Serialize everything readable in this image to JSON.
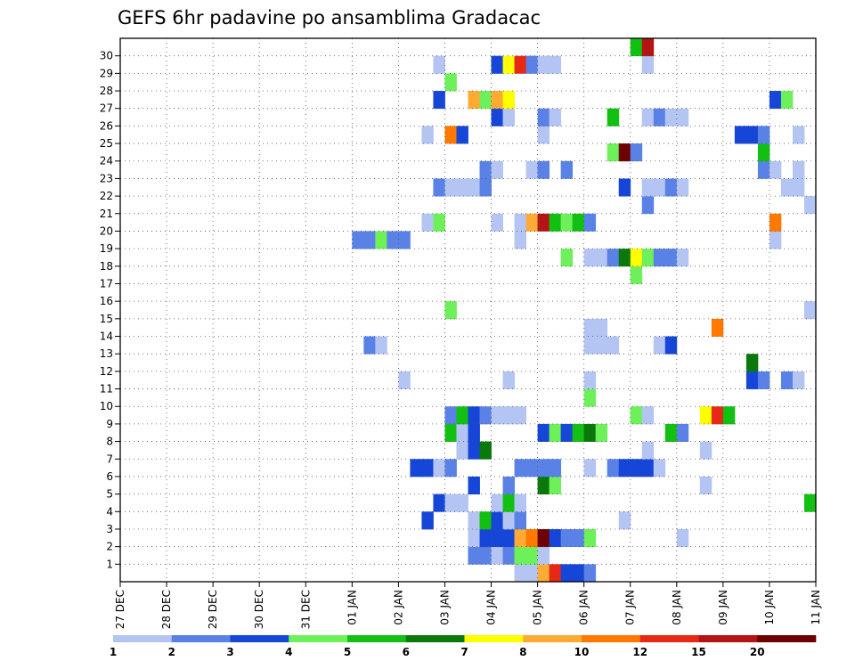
{
  "chart_data": {
    "type": "heatmap",
    "title": "GEFS 6hr padavine po ansamblima Gradacac",
    "xlabel": "",
    "ylabel": "",
    "x_tick_labels": [
      "27 DEC",
      "28 DEC",
      "29 DEC",
      "30 DEC",
      "31 DEC",
      "01 JAN",
      "02 JAN",
      "03 JAN",
      "04 JAN",
      "05 JAN",
      "06 JAN",
      "07 JAN",
      "08 JAN",
      "09 JAN",
      "10 JAN",
      "11 JAN"
    ],
    "y_tick_labels": [
      "1",
      "2",
      "3",
      "4",
      "5",
      "6",
      "7",
      "8",
      "9",
      "10",
      "11",
      "12",
      "13",
      "14",
      "15",
      "16",
      "17",
      "18",
      "19",
      "20",
      "21",
      "22",
      "23",
      "24",
      "25",
      "26",
      "27",
      "28",
      "29",
      "30"
    ],
    "steps": 60,
    "members": 31,
    "legend": {
      "labels": [
        "1",
        "2",
        "3",
        "4",
        "5",
        "6",
        "7",
        "8",
        "10",
        "12",
        "15",
        "20"
      ],
      "colors": [
        "#b4c5f3",
        "#5a82e6",
        "#1646d8",
        "#6ef05a",
        "#12c012",
        "#0a780a",
        "#ffff00",
        "#ffaa32",
        "#ff7800",
        "#e62814",
        "#b41414",
        "#6e0000"
      ]
    },
    "cells": [
      [
        34,
        0,
        1
      ],
      [
        35,
        0,
        1
      ],
      [
        36,
        0,
        8
      ],
      [
        37,
        0,
        10
      ],
      [
        38,
        0,
        3
      ],
      [
        39,
        0,
        3
      ],
      [
        40,
        0,
        2
      ],
      [
        30,
        1,
        2
      ],
      [
        31,
        1,
        2
      ],
      [
        32,
        1,
        1
      ],
      [
        33,
        1,
        2
      ],
      [
        34,
        1,
        4
      ],
      [
        35,
        1,
        4
      ],
      [
        36,
        1,
        1
      ],
      [
        30,
        2,
        1
      ],
      [
        31,
        2,
        3
      ],
      [
        32,
        2,
        3
      ],
      [
        33,
        2,
        3
      ],
      [
        34,
        2,
        8
      ],
      [
        35,
        2,
        9
      ],
      [
        36,
        2,
        12
      ],
      [
        37,
        2,
        3
      ],
      [
        38,
        2,
        2
      ],
      [
        39,
        2,
        2
      ],
      [
        40,
        2,
        4
      ],
      [
        48,
        2,
        1
      ],
      [
        26,
        3,
        3
      ],
      [
        30,
        3,
        1
      ],
      [
        31,
        3,
        5
      ],
      [
        32,
        3,
        3
      ],
      [
        33,
        3,
        1
      ],
      [
        34,
        3,
        2
      ],
      [
        43,
        3,
        1
      ],
      [
        27,
        4,
        3
      ],
      [
        28,
        4,
        1
      ],
      [
        29,
        4,
        1
      ],
      [
        32,
        4,
        1
      ],
      [
        33,
        4,
        5
      ],
      [
        34,
        4,
        1
      ],
      [
        59,
        4,
        5
      ],
      [
        30,
        5,
        3
      ],
      [
        33,
        5,
        2
      ],
      [
        36,
        5,
        6
      ],
      [
        37,
        5,
        4
      ],
      [
        50,
        5,
        1
      ],
      [
        25,
        6,
        3
      ],
      [
        26,
        6,
        3
      ],
      [
        27,
        6,
        1
      ],
      [
        28,
        6,
        2
      ],
      [
        34,
        6,
        2
      ],
      [
        35,
        6,
        2
      ],
      [
        36,
        6,
        2
      ],
      [
        37,
        6,
        2
      ],
      [
        40,
        6,
        1
      ],
      [
        42,
        6,
        2
      ],
      [
        43,
        6,
        3
      ],
      [
        44,
        6,
        3
      ],
      [
        45,
        6,
        3
      ],
      [
        46,
        6,
        1
      ],
      [
        29,
        7,
        1
      ],
      [
        30,
        7,
        3
      ],
      [
        31,
        7,
        6
      ],
      [
        45,
        7,
        1
      ],
      [
        50,
        7,
        1
      ],
      [
        28,
        8,
        5
      ],
      [
        29,
        8,
        1
      ],
      [
        30,
        8,
        3
      ],
      [
        36,
        8,
        3
      ],
      [
        37,
        8,
        4
      ],
      [
        38,
        8,
        3
      ],
      [
        39,
        8,
        5
      ],
      [
        40,
        8,
        6
      ],
      [
        41,
        8,
        4
      ],
      [
        47,
        8,
        5
      ],
      [
        48,
        8,
        2
      ],
      [
        28,
        9,
        2
      ],
      [
        29,
        9,
        5
      ],
      [
        30,
        9,
        3
      ],
      [
        31,
        9,
        2
      ],
      [
        32,
        9,
        1
      ],
      [
        33,
        9,
        1
      ],
      [
        34,
        9,
        1
      ],
      [
        44,
        9,
        4
      ],
      [
        45,
        9,
        1
      ],
      [
        50,
        9,
        7
      ],
      [
        51,
        9,
        10
      ],
      [
        52,
        9,
        5
      ],
      [
        40,
        10,
        4
      ],
      [
        24,
        11,
        1
      ],
      [
        33,
        11,
        1
      ],
      [
        40,
        11,
        1
      ],
      [
        54,
        11,
        3
      ],
      [
        55,
        11,
        2
      ],
      [
        57,
        11,
        2
      ],
      [
        58,
        11,
        1
      ],
      [
        54,
        12,
        6
      ],
      [
        21,
        13,
        2
      ],
      [
        22,
        13,
        1
      ],
      [
        40,
        13,
        1
      ],
      [
        41,
        13,
        1
      ],
      [
        42,
        13,
        1
      ],
      [
        46,
        13,
        1
      ],
      [
        47,
        13,
        3
      ],
      [
        40,
        14,
        1
      ],
      [
        41,
        14,
        1
      ],
      [
        51,
        14,
        9
      ],
      [
        28,
        15,
        4
      ],
      [
        59,
        15,
        1
      ],
      [
        44,
        17,
        4
      ],
      [
        38,
        18,
        4
      ],
      [
        40,
        18,
        1
      ],
      [
        41,
        18,
        1
      ],
      [
        42,
        18,
        2
      ],
      [
        43,
        18,
        6
      ],
      [
        44,
        18,
        7
      ],
      [
        45,
        18,
        4
      ],
      [
        46,
        18,
        2
      ],
      [
        47,
        18,
        2
      ],
      [
        48,
        18,
        1
      ],
      [
        20,
        19,
        2
      ],
      [
        21,
        19,
        2
      ],
      [
        22,
        19,
        4
      ],
      [
        23,
        19,
        2
      ],
      [
        24,
        19,
        2
      ],
      [
        34,
        19,
        1
      ],
      [
        56,
        19,
        1
      ],
      [
        26,
        20,
        1
      ],
      [
        27,
        20,
        4
      ],
      [
        32,
        20,
        1
      ],
      [
        34,
        20,
        1
      ],
      [
        35,
        20,
        8
      ],
      [
        36,
        20,
        11
      ],
      [
        37,
        20,
        5
      ],
      [
        38,
        20,
        4
      ],
      [
        39,
        20,
        5
      ],
      [
        40,
        20,
        2
      ],
      [
        56,
        20,
        9
      ],
      [
        45,
        21,
        2
      ],
      [
        59,
        21,
        1
      ],
      [
        27,
        22,
        2
      ],
      [
        28,
        22,
        1
      ],
      [
        29,
        22,
        1
      ],
      [
        30,
        22,
        1
      ],
      [
        31,
        22,
        2
      ],
      [
        43,
        22,
        3
      ],
      [
        45,
        22,
        1
      ],
      [
        46,
        22,
        1
      ],
      [
        47,
        22,
        2
      ],
      [
        48,
        22,
        1
      ],
      [
        57,
        22,
        1
      ],
      [
        58,
        22,
        1
      ],
      [
        31,
        23,
        2
      ],
      [
        32,
        23,
        1
      ],
      [
        35,
        23,
        1
      ],
      [
        36,
        23,
        2
      ],
      [
        38,
        23,
        2
      ],
      [
        55,
        23,
        2
      ],
      [
        56,
        23,
        1
      ],
      [
        58,
        23,
        1
      ],
      [
        42,
        24,
        4
      ],
      [
        43,
        24,
        12
      ],
      [
        44,
        24,
        2
      ],
      [
        55,
        24,
        5
      ],
      [
        26,
        25,
        1
      ],
      [
        28,
        25,
        9
      ],
      [
        29,
        25,
        3
      ],
      [
        36,
        25,
        1
      ],
      [
        53,
        25,
        3
      ],
      [
        54,
        25,
        3
      ],
      [
        55,
        25,
        2
      ],
      [
        58,
        25,
        1
      ],
      [
        32,
        26,
        3
      ],
      [
        33,
        26,
        1
      ],
      [
        36,
        26,
        2
      ],
      [
        37,
        26,
        1
      ],
      [
        42,
        26,
        5
      ],
      [
        45,
        26,
        1
      ],
      [
        46,
        26,
        2
      ],
      [
        47,
        26,
        1
      ],
      [
        48,
        26,
        1
      ],
      [
        27,
        27,
        3
      ],
      [
        30,
        27,
        8
      ],
      [
        31,
        27,
        4
      ],
      [
        32,
        27,
        8
      ],
      [
        33,
        27,
        7
      ],
      [
        56,
        27,
        3
      ],
      [
        57,
        27,
        4
      ],
      [
        28,
        28,
        4
      ],
      [
        27,
        29,
        1
      ],
      [
        32,
        29,
        3
      ],
      [
        33,
        29,
        7
      ],
      [
        34,
        29,
        10
      ],
      [
        35,
        29,
        2
      ],
      [
        36,
        29,
        1
      ],
      [
        37,
        29,
        1
      ],
      [
        45,
        29,
        1
      ],
      [
        44,
        30,
        5
      ],
      [
        45,
        30,
        11
      ]
    ]
  }
}
